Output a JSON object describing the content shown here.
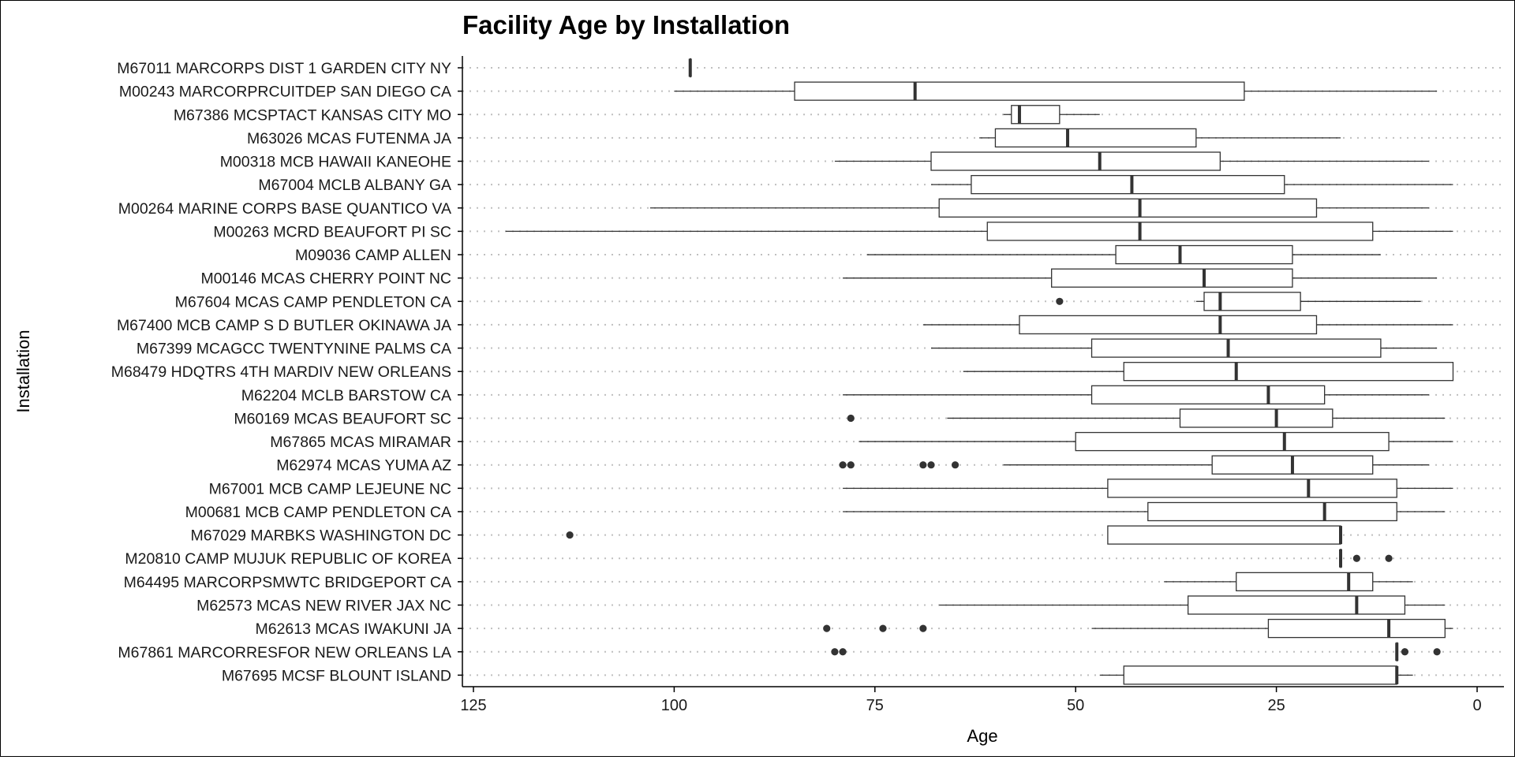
{
  "chart_data": {
    "type": "boxplot",
    "orientation": "horizontal",
    "title": "Facility Age by Installation",
    "xlabel": "Age",
    "ylabel": "Installation",
    "x_reversed": true,
    "xlim": [
      127,
      -2
    ],
    "xticks": [
      125,
      100,
      75,
      50,
      25,
      0
    ],
    "grid": "dotted horizontal",
    "colors": {
      "box_fill": "#ffffff",
      "box_stroke": "#333333",
      "outlier": "#333333",
      "grid": "#bfbfbf"
    },
    "categories": [
      "M67011 MARCORPS DIST 1 GARDEN CITY NY",
      "M00243 MARCORPRCUITDEP SAN DIEGO CA",
      "M67386 MCSPTACT KANSAS CITY MO",
      "M63026 MCAS FUTENMA JA",
      "M00318 MCB HAWAII KANEOHE",
      "M67004 MCLB ALBANY GA",
      "M00264 MARINE CORPS BASE QUANTICO VA",
      "M00263 MCRD BEAUFORT PI SC",
      "M09036 CAMP ALLEN",
      "M00146 MCAS CHERRY POINT NC",
      "M67604 MCAS CAMP PENDLETON CA",
      "M67400 MCB CAMP S D BUTLER OKINAWA JA",
      "M67399 MCAGCC TWENTYNINE PALMS CA",
      "M68479 HDQTRS 4TH MARDIV NEW ORLEANS",
      "M62204 MCLB BARSTOW CA",
      "M60169 MCAS BEAUFORT SC",
      "M67865 MCAS MIRAMAR",
      "M62974 MCAS YUMA AZ",
      "M67001 MCB CAMP LEJEUNE NC",
      "M00681 MCB CAMP PENDLETON CA",
      "M67029 MARBKS WASHINGTON DC",
      "M20810 CAMP MUJUK REPUBLIC OF KOREA",
      "M64495 MARCORPSMWTC BRIDGEPORT CA",
      "M62573 MCAS NEW RIVER JAX NC",
      "M62613 MCAS IWAKUNI JA",
      "M67861 MARCORRESFOR NEW ORLEANS LA",
      "M67695 MCSF BLOUNT ISLAND"
    ],
    "boxes": [
      {
        "whisker_low": 98,
        "q1": 98,
        "median": 98,
        "q3": 98,
        "whisker_high": 98,
        "outliers": []
      },
      {
        "whisker_low": 5,
        "q1": 29,
        "median": 70,
        "q3": 85,
        "whisker_high": 100,
        "outliers": []
      },
      {
        "whisker_low": 47,
        "q1": 52,
        "median": 57,
        "q3": 58,
        "whisker_high": 59,
        "outliers": []
      },
      {
        "whisker_low": 17,
        "q1": 35,
        "median": 51,
        "q3": 60,
        "whisker_high": 62,
        "outliers": []
      },
      {
        "whisker_low": 6,
        "q1": 32,
        "median": 47,
        "q3": 68,
        "whisker_high": 80,
        "outliers": []
      },
      {
        "whisker_low": 3,
        "q1": 24,
        "median": 43,
        "q3": 63,
        "whisker_high": 68,
        "outliers": []
      },
      {
        "whisker_low": 6,
        "q1": 20,
        "median": 42,
        "q3": 67,
        "whisker_high": 103,
        "outliers": []
      },
      {
        "whisker_low": 3,
        "q1": 13,
        "median": 42,
        "q3": 61,
        "whisker_high": 121,
        "outliers": []
      },
      {
        "whisker_low": 12,
        "q1": 23,
        "median": 37,
        "q3": 45,
        "whisker_high": 76,
        "outliers": []
      },
      {
        "whisker_low": 5,
        "q1": 23,
        "median": 34,
        "q3": 53,
        "whisker_high": 79,
        "outliers": []
      },
      {
        "whisker_low": 7,
        "q1": 22,
        "median": 32,
        "q3": 34,
        "whisker_high": 35,
        "outliers": [
          52
        ]
      },
      {
        "whisker_low": 3,
        "q1": 20,
        "median": 32,
        "q3": 57,
        "whisker_high": 69,
        "outliers": []
      },
      {
        "whisker_low": 5,
        "q1": 12,
        "median": 31,
        "q3": 48,
        "whisker_high": 68,
        "outliers": []
      },
      {
        "whisker_low": 3,
        "q1": 3,
        "median": 30,
        "q3": 44,
        "whisker_high": 64,
        "outliers": []
      },
      {
        "whisker_low": 6,
        "q1": 19,
        "median": 26,
        "q3": 48,
        "whisker_high": 79,
        "outliers": []
      },
      {
        "whisker_low": 4,
        "q1": 18,
        "median": 25,
        "q3": 37,
        "whisker_high": 66,
        "outliers": [
          78
        ]
      },
      {
        "whisker_low": 3,
        "q1": 11,
        "median": 24,
        "q3": 50,
        "whisker_high": 77,
        "outliers": []
      },
      {
        "whisker_low": 6,
        "q1": 13,
        "median": 23,
        "q3": 33,
        "whisker_high": 59,
        "outliers": [
          79,
          78,
          69,
          68,
          65
        ]
      },
      {
        "whisker_low": 3,
        "q1": 10,
        "median": 21,
        "q3": 46,
        "whisker_high": 79,
        "outliers": []
      },
      {
        "whisker_low": 4,
        "q1": 10,
        "median": 19,
        "q3": 41,
        "whisker_high": 79,
        "outliers": []
      },
      {
        "whisker_low": 17,
        "q1": 17,
        "median": 17,
        "q3": 46,
        "whisker_high": 46,
        "outliers": [
          113
        ]
      },
      {
        "whisker_low": 17,
        "q1": 17,
        "median": 17,
        "q3": 17,
        "whisker_high": 17,
        "outliers": [
          15,
          11
        ]
      },
      {
        "whisker_low": 8,
        "q1": 13,
        "median": 16,
        "q3": 30,
        "whisker_high": 39,
        "outliers": []
      },
      {
        "whisker_low": 4,
        "q1": 9,
        "median": 15,
        "q3": 36,
        "whisker_high": 67,
        "outliers": []
      },
      {
        "whisker_low": 3,
        "q1": 4,
        "median": 11,
        "q3": 26,
        "whisker_high": 48,
        "outliers": [
          81,
          74,
          69
        ]
      },
      {
        "whisker_low": 10,
        "q1": 10,
        "median": 10,
        "q3": 10,
        "whisker_high": 10,
        "outliers": [
          9,
          5,
          80,
          79
        ]
      },
      {
        "whisker_low": 8,
        "q1": 10,
        "median": 10,
        "q3": 44,
        "whisker_high": 47,
        "outliers": []
      }
    ]
  }
}
